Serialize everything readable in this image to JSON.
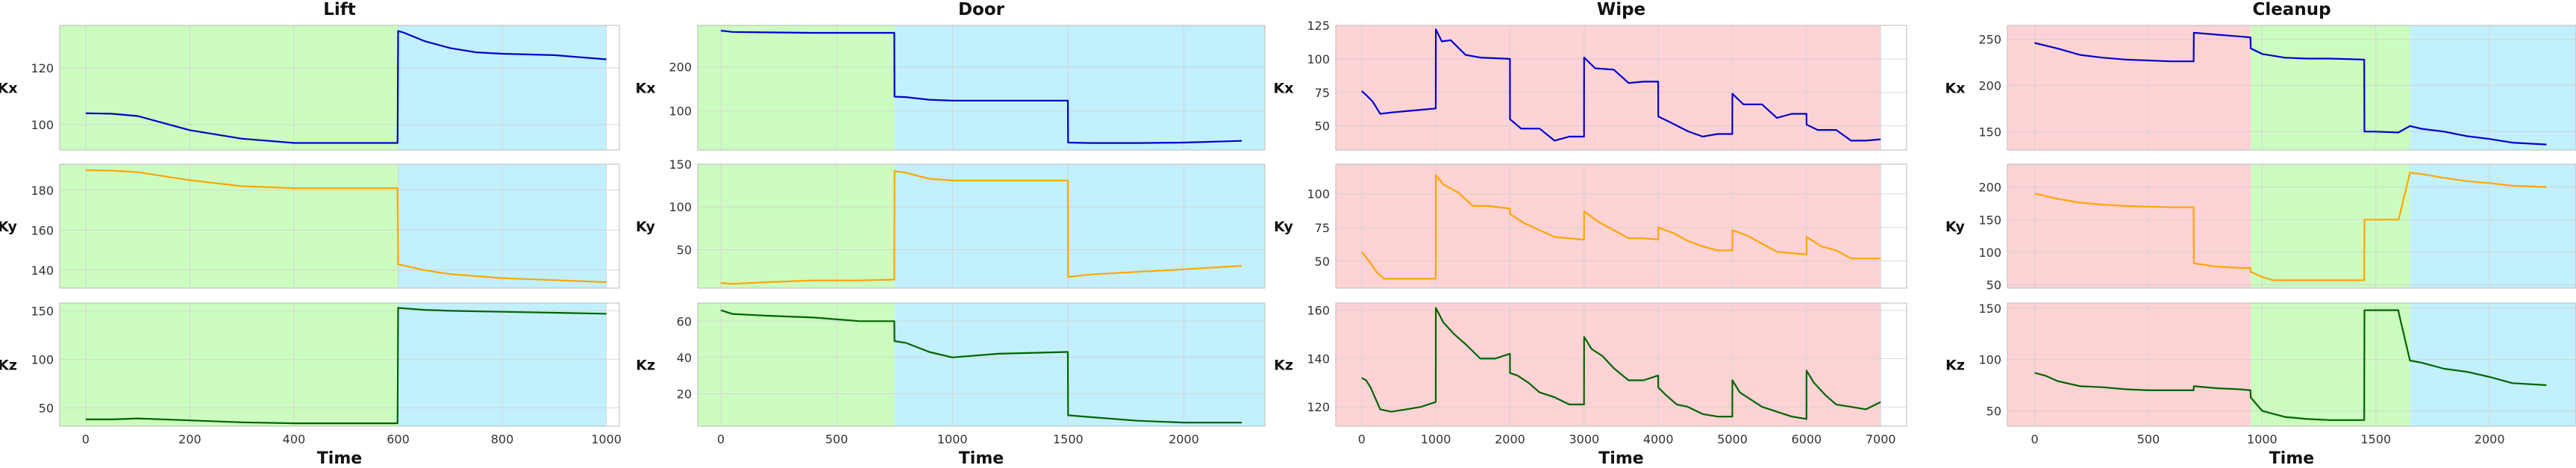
{
  "colors": {
    "phase_green": "#ccfcc0",
    "phase_blue": "#c2f0fc",
    "phase_red": "#fdd3d5",
    "kx_line": "#0000cc",
    "ky_line": "#ffa500",
    "kz_line": "#006400",
    "grid": "#d0d0d0",
    "spine": "#bbbbbb",
    "text": "#111111"
  },
  "chart_data": [
    {
      "type": "line",
      "title": "Lift",
      "xlabel": "Time",
      "xlim": [
        -50,
        1025
      ],
      "xticks": [
        0,
        200,
        400,
        600,
        800,
        1000
      ],
      "phases": [
        {
          "start": -50,
          "end": 600,
          "color": "green"
        },
        {
          "start": 600,
          "end": 1000,
          "color": "blue"
        }
      ],
      "series": [
        {
          "ylabel": "Kx",
          "ylim": [
            91,
            135
          ],
          "yticks": [
            100,
            120
          ],
          "x": [
            0,
            50,
            100,
            150,
            200,
            300,
            400,
            500,
            599,
            600,
            610,
            650,
            700,
            750,
            800,
            900,
            1000
          ],
          "y": [
            104,
            103.8,
            103,
            100.5,
            98,
            95,
            93.5,
            93.5,
            93.5,
            133,
            132.5,
            129.5,
            127,
            125.5,
            125,
            124.5,
            123
          ]
        },
        {
          "ylabel": "Ky",
          "ylim": [
            131,
            193
          ],
          "yticks": [
            140,
            160,
            180
          ],
          "x": [
            0,
            50,
            100,
            200,
            300,
            400,
            500,
            599,
            600,
            650,
            700,
            800,
            900,
            1000
          ],
          "y": [
            190,
            189.8,
            189,
            185,
            182,
            181,
            181,
            181,
            143,
            140,
            138,
            136,
            135,
            134
          ]
        },
        {
          "ylabel": "Kz",
          "ylim": [
            31,
            158
          ],
          "yticks": [
            50,
            100,
            150
          ],
          "x": [
            0,
            50,
            100,
            200,
            300,
            400,
            500,
            599,
            600,
            650,
            700,
            800,
            900,
            1000
          ],
          "y": [
            38,
            38,
            39,
            37,
            35,
            34,
            34,
            34,
            153,
            151,
            150,
            149,
            148,
            147
          ]
        }
      ]
    },
    {
      "type": "line",
      "title": "Door",
      "xlabel": "Time",
      "xlim": [
        -100,
        2350
      ],
      "xticks": [
        0,
        500,
        1000,
        1500,
        2000
      ],
      "phases": [
        {
          "start": -100,
          "end": 750,
          "color": "green"
        },
        {
          "start": 750,
          "end": 2350,
          "color": "blue"
        }
      ],
      "series": [
        {
          "ylabel": "Kx",
          "ylim": [
            10,
            295
          ],
          "yticks": [
            100,
            200
          ],
          "x": [
            0,
            50,
            200,
            400,
            600,
            749,
            750,
            800,
            900,
            1000,
            1200,
            1499,
            1500,
            1600,
            1800,
            2000,
            2250
          ],
          "y": [
            283,
            280,
            279,
            278,
            278,
            278,
            132,
            131,
            125,
            123,
            123,
            123,
            27,
            26,
            26,
            27,
            31
          ]
        },
        {
          "ylabel": "Ky",
          "ylim": [
            5,
            150
          ],
          "yticks": [
            50,
            100,
            150
          ],
          "x": [
            0,
            50,
            200,
            400,
            600,
            749,
            750,
            800,
            900,
            1000,
            1200,
            1499,
            1500,
            1600,
            1800,
            2000,
            2250
          ],
          "y": [
            11,
            10,
            12,
            14,
            14,
            15,
            142,
            140,
            133,
            131,
            131,
            131,
            18,
            21,
            24,
            27,
            31
          ]
        },
        {
          "ylabel": "Kz",
          "ylim": [
            2,
            70
          ],
          "yticks": [
            20,
            40,
            60
          ],
          "x": [
            0,
            50,
            200,
            400,
            600,
            749,
            750,
            800,
            900,
            1000,
            1200,
            1499,
            1500,
            1600,
            1800,
            2000,
            2250
          ],
          "y": [
            66,
            64,
            63,
            62,
            60,
            60,
            49,
            48,
            43,
            40,
            42,
            43,
            8,
            7,
            5,
            4,
            4
          ]
        }
      ]
    },
    {
      "type": "line",
      "title": "Wipe",
      "xlabel": "Time",
      "xlim": [
        -350,
        7350
      ],
      "xticks": [
        0,
        1000,
        2000,
        3000,
        4000,
        5000,
        6000,
        7000
      ],
      "phases": [
        {
          "start": -350,
          "end": 7000,
          "color": "red"
        }
      ],
      "series": [
        {
          "ylabel": "Kx",
          "ylim": [
            32,
            125
          ],
          "yticks": [
            50,
            75,
            100,
            125
          ],
          "x": [
            0,
            80,
            150,
            250,
            400,
            600,
            800,
            999,
            1000,
            1080,
            1200,
            1400,
            1600,
            1999,
            2000,
            2150,
            2400,
            2600,
            2800,
            2999,
            3000,
            3150,
            3400,
            3600,
            3800,
            3999,
            4000,
            4150,
            4400,
            4600,
            4800,
            4999,
            5000,
            5150,
            5400,
            5600,
            5800,
            5999,
            6000,
            6150,
            6400,
            6600,
            6800,
            7000
          ],
          "y": [
            76,
            72,
            68,
            59,
            60,
            61,
            62,
            63,
            122,
            113,
            114,
            103,
            101,
            100,
            55,
            48,
            48,
            39,
            42,
            42,
            101,
            93,
            92,
            82,
            83,
            83,
            57,
            53,
            46,
            42,
            44,
            44,
            74,
            66,
            66,
            56,
            59,
            59,
            51,
            47,
            47,
            39,
            39,
            40
          ]
        },
        {
          "ylabel": "Ky",
          "ylim": [
            30,
            122
          ],
          "yticks": [
            50,
            75,
            100
          ],
          "x": [
            0,
            100,
            200,
            300,
            500,
            700,
            999,
            1000,
            1100,
            1300,
            1500,
            1700,
            1999,
            2000,
            2200,
            2400,
            2600,
            2800,
            2999,
            3000,
            3200,
            3400,
            3600,
            3800,
            3999,
            4000,
            4200,
            4400,
            4600,
            4800,
            4999,
            5000,
            5200,
            5400,
            5600,
            5800,
            5999,
            6000,
            6200,
            6400,
            6600,
            6800,
            7000
          ],
          "y": [
            57,
            50,
            42,
            37,
            37,
            37,
            37,
            114,
            107,
            101,
            91,
            91,
            89,
            85,
            78,
            73,
            68,
            67,
            66,
            87,
            79,
            73,
            67,
            67,
            66,
            75,
            71,
            65,
            61,
            58,
            58,
            73,
            69,
            63,
            57,
            56,
            55,
            68,
            61,
            58,
            52,
            52,
            52
          ]
        },
        {
          "ylabel": "Kz",
          "ylim": [
            112,
            163
          ],
          "yticks": [
            120,
            140,
            160
          ],
          "x": [
            0,
            60,
            120,
            250,
            400,
            600,
            800,
            999,
            1000,
            1100,
            1250,
            1400,
            1600,
            1800,
            1999,
            2000,
            2100,
            2250,
            2400,
            2600,
            2800,
            2999,
            3000,
            3100,
            3250,
            3400,
            3600,
            3800,
            3999,
            4000,
            4100,
            4250,
            4400,
            4600,
            4800,
            4999,
            5000,
            5100,
            5250,
            5400,
            5600,
            5800,
            5999,
            6000,
            6100,
            6250,
            6400,
            6600,
            6800,
            7000
          ],
          "y": [
            132,
            131,
            128,
            119,
            118,
            119,
            120,
            122,
            161,
            155,
            150,
            146,
            140,
            140,
            142,
            134,
            133,
            130,
            126,
            124,
            121,
            121,
            149,
            144,
            141,
            136,
            131,
            131,
            133,
            128,
            125,
            121,
            120,
            117,
            116,
            116,
            131,
            126,
            123,
            120,
            118,
            116,
            115,
            135,
            130,
            125,
            121,
            120,
            119,
            122
          ]
        }
      ]
    },
    {
      "type": "line",
      "title": "Cleanup",
      "xlabel": "Time",
      "xlim": [
        -120,
        2380
      ],
      "xticks": [
        0,
        500,
        1000,
        1500,
        2000
      ],
      "phases": [
        {
          "start": -120,
          "end": 950,
          "color": "red"
        },
        {
          "start": 950,
          "end": 1650,
          "color": "green"
        },
        {
          "start": 1650,
          "end": 2380,
          "color": "blue"
        }
      ],
      "series": [
        {
          "ylabel": "Kx",
          "ylim": [
            130,
            265
          ],
          "yticks": [
            150,
            200,
            250
          ],
          "x": [
            0,
            50,
            100,
            200,
            300,
            400,
            500,
            600,
            699,
            700,
            800,
            900,
            949,
            950,
            1000,
            1100,
            1200,
            1300,
            1449,
            1450,
            1500,
            1599,
            1650,
            1700,
            1800,
            1900,
            2000,
            2100,
            2250
          ],
          "y": [
            246,
            243,
            240,
            233,
            230,
            228,
            227,
            226,
            226,
            257,
            255,
            253,
            252,
            240,
            234,
            230,
            229,
            229,
            228,
            150,
            150,
            149,
            156,
            153,
            150,
            145,
            142,
            138,
            136
          ]
        },
        {
          "ylabel": "Ky",
          "ylim": [
            45,
            235
          ],
          "yticks": [
            50,
            100,
            150,
            200
          ],
          "x": [
            0,
            50,
            100,
            200,
            300,
            400,
            500,
            600,
            699,
            700,
            800,
            900,
            949,
            950,
            1000,
            1050,
            1100,
            1200,
            1300,
            1449,
            1450,
            1500,
            1599,
            1600,
            1650,
            1700,
            1800,
            1900,
            2000,
            2100,
            2250
          ],
          "y": [
            190,
            186,
            182,
            176,
            173,
            171,
            170,
            169,
            169,
            83,
            78,
            76,
            76,
            70,
            62,
            57,
            57,
            57,
            57,
            57,
            150,
            150,
            150,
            150,
            222,
            220,
            214,
            209,
            206,
            202,
            200
          ]
        },
        {
          "ylabel": "Kz",
          "ylim": [
            35,
            155
          ],
          "yticks": [
            50,
            100,
            150
          ],
          "x": [
            0,
            50,
            100,
            200,
            300,
            400,
            500,
            600,
            699,
            700,
            800,
            900,
            949,
            950,
            1000,
            1100,
            1200,
            1300,
            1449,
            1450,
            1500,
            1599,
            1600,
            1650,
            1700,
            1800,
            1900,
            2000,
            2100,
            2250
          ],
          "y": [
            87,
            84,
            79,
            74,
            73,
            71,
            70,
            70,
            70,
            74,
            72,
            71,
            70,
            63,
            50,
            44,
            42,
            41,
            41,
            148,
            148,
            148,
            146,
            99,
            97,
            91,
            88,
            83,
            77,
            75
          ]
        }
      ]
    }
  ]
}
